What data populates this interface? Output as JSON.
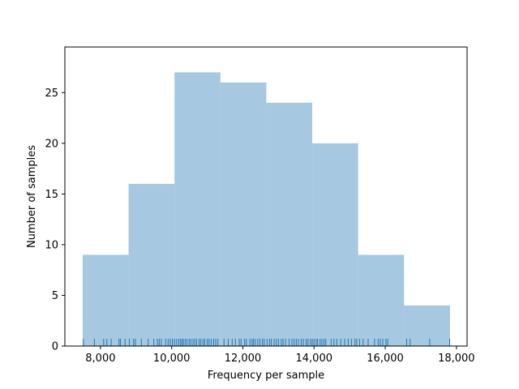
{
  "chart_data": {
    "type": "bar",
    "subtype": "histogram",
    "title": "",
    "xlabel": "Frequency per sample",
    "ylabel": "Number of samples",
    "xlim": [
      7000,
      18300
    ],
    "ylim": [
      0,
      29.5
    ],
    "xticks": [
      8000,
      10000,
      12000,
      14000,
      16000,
      18000
    ],
    "xtick_labels": [
      "8,000",
      "10,000",
      "12,000",
      "14,000",
      "16,000",
      "18,000"
    ],
    "yticks": [
      0,
      5,
      10,
      15,
      20,
      25
    ],
    "ytick_labels": [
      "0",
      "5",
      "10",
      "15",
      "20",
      "25"
    ],
    "bins": [
      {
        "x0": 7500,
        "x1": 8790,
        "count": 9
      },
      {
        "x0": 8790,
        "x1": 10080,
        "count": 16
      },
      {
        "x0": 10080,
        "x1": 11370,
        "count": 27
      },
      {
        "x0": 11370,
        "x1": 12660,
        "count": 26
      },
      {
        "x0": 12660,
        "x1": 13950,
        "count": 24
      },
      {
        "x0": 13950,
        "x1": 15240,
        "count": 20
      },
      {
        "x0": 15240,
        "x1": 16530,
        "count": 9
      },
      {
        "x0": 16530,
        "x1": 17820,
        "count": 4
      }
    ],
    "rug": [
      7520,
      7830,
      8090,
      8180,
      8300,
      8520,
      8560,
      8690,
      8810,
      8930,
      8980,
      9150,
      9340,
      9500,
      9600,
      9650,
      9710,
      9830,
      9900,
      9960,
      10020,
      10080,
      10140,
      10200,
      10250,
      10290,
      10330,
      10380,
      10430,
      10490,
      10540,
      10600,
      10650,
      10700,
      10770,
      10820,
      10880,
      10930,
      11000,
      11050,
      11110,
      11180,
      11240,
      11300,
      11470,
      11590,
      11700,
      11790,
      11900,
      11950,
      12050,
      12100,
      12200,
      12260,
      12300,
      12350,
      12420,
      12480,
      12550,
      12600,
      12680,
      12750,
      12800,
      12880,
      12940,
      13000,
      13080,
      13130,
      13200,
      13300,
      13380,
      13440,
      13500,
      13560,
      13640,
      13700,
      13780,
      13830,
      13900,
      13950,
      14000,
      14060,
      14100,
      14170,
      14220,
      14280,
      14330,
      14480,
      14560,
      14640,
      14750,
      14860,
      14960,
      15050,
      15150,
      15200,
      15280,
      15380,
      15520,
      15700,
      15800,
      15860,
      15930,
      16020,
      16070,
      16600,
      16700,
      17250,
      17810
    ],
    "colors": {
      "bar_fill": "#a6c8e0",
      "rug": "#1f77b4",
      "axes": "#000000"
    },
    "grid": false,
    "legend": "none"
  }
}
